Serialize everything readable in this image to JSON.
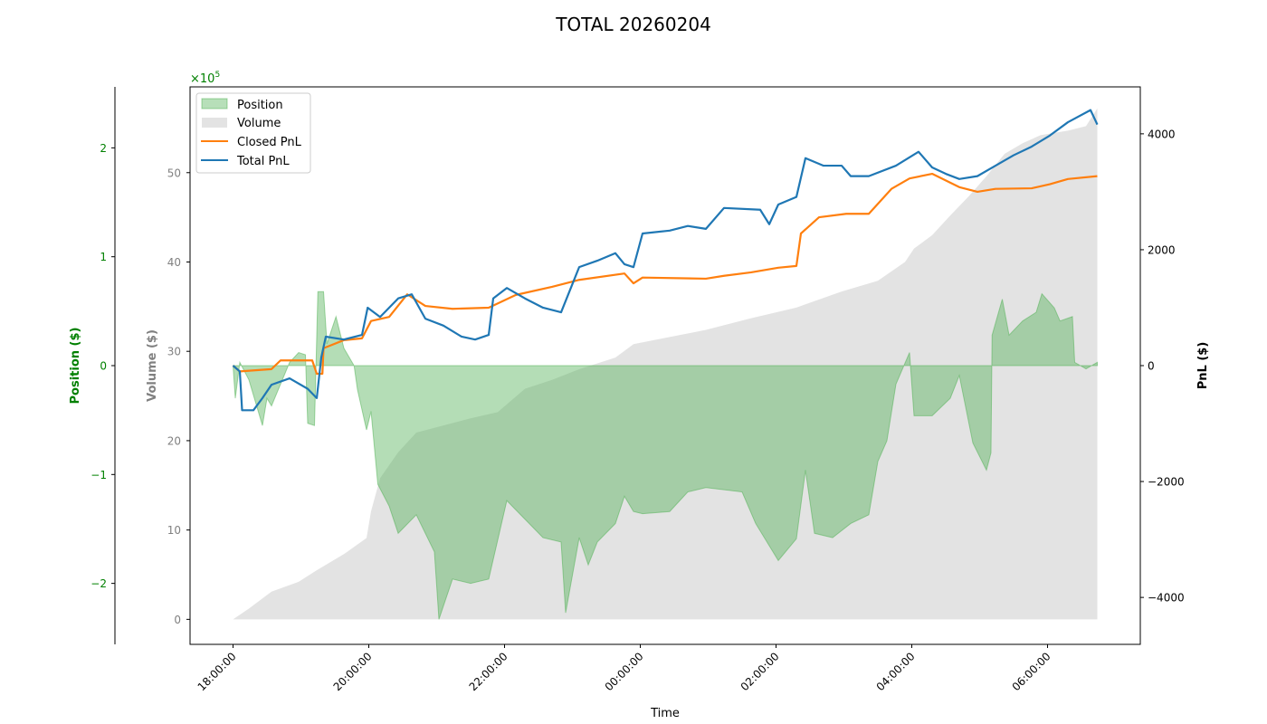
{
  "chart_data": {
    "type": "line",
    "title": "TOTAL 20260204",
    "xlabel": "Time",
    "xlim": [
      "17:22",
      "07:22"
    ],
    "x_ticks": [
      "18:00:00",
      "20:00:00",
      "22:00:00",
      "00:00:00",
      "02:00:00",
      "04:00:00",
      "06:00:00"
    ],
    "grid": false,
    "legend_position": "top-left",
    "axes": {
      "position": {
        "label": "Position ($)",
        "multiplier_label": "×10",
        "multiplier_exp": "5",
        "ylim": [
          -2.56,
          2.56
        ],
        "ticks": [
          -2,
          -1,
          0,
          1,
          2
        ],
        "tick_labels": [
          "−2",
          "−1",
          "0",
          "1",
          "2"
        ],
        "color": "#008000"
      },
      "volume": {
        "label": "Volume ($)",
        "ylim": [
          -2.8,
          59.6
        ],
        "ticks": [
          0,
          10,
          20,
          30,
          40,
          50
        ],
        "tick_labels": [
          "0",
          "10",
          "20",
          "30",
          "40",
          "50"
        ],
        "color": "#808080"
      },
      "pnl": {
        "label": "PnL ($)",
        "ylim": [
          -4810,
          4810
        ],
        "ticks": [
          -4000,
          -2000,
          0,
          2000,
          4000
        ],
        "tick_labels": [
          "−4000",
          "−2000",
          "0",
          "2000",
          "4000"
        ],
        "color": "#000000"
      }
    },
    "series": [
      {
        "name": "Position",
        "kind": "area",
        "axis": "position",
        "color": "#4caf50",
        "points": [
          [
            "18:00",
            0
          ],
          [
            "18:02",
            -0.3
          ],
          [
            "18:06",
            0.03
          ],
          [
            "18:14",
            -0.13
          ],
          [
            "18:26",
            -0.55
          ],
          [
            "18:30",
            -0.3
          ],
          [
            "18:34",
            -0.37
          ],
          [
            "18:50",
            0.03
          ],
          [
            "18:58",
            0.12
          ],
          [
            "19:04",
            0.1
          ],
          [
            "19:06",
            -0.53
          ],
          [
            "19:12",
            -0.55
          ],
          [
            "19:15",
            0.68
          ],
          [
            "19:20",
            0.68
          ],
          [
            "19:23",
            0.2
          ],
          [
            "19:31",
            0.45
          ],
          [
            "19:38",
            0.16
          ],
          [
            "19:47",
            0.0
          ],
          [
            "19:50",
            -0.22
          ],
          [
            "19:58",
            -0.59
          ],
          [
            "20:02",
            -0.42
          ],
          [
            "20:08",
            -1.09
          ],
          [
            "20:18",
            -1.29
          ],
          [
            "20:26",
            -1.54
          ],
          [
            "20:42",
            -1.37
          ],
          [
            "20:58",
            -1.71
          ],
          [
            "21:02",
            -2.33
          ],
          [
            "21:14",
            -1.96
          ],
          [
            "21:30",
            -2.0
          ],
          [
            "21:46",
            -1.96
          ],
          [
            "22:02",
            -1.24
          ],
          [
            "22:18",
            -1.41
          ],
          [
            "22:34",
            -1.58
          ],
          [
            "22:50",
            -1.62
          ],
          [
            "22:54",
            -2.27
          ],
          [
            "23:06",
            -1.58
          ],
          [
            "23:14",
            -1.83
          ],
          [
            "23:22",
            -1.62
          ],
          [
            "23:38",
            -1.45
          ],
          [
            "23:46",
            -1.2
          ],
          [
            "23:54",
            -1.34
          ],
          [
            "00:02",
            -1.36
          ],
          [
            "00:26",
            -1.34
          ],
          [
            "00:42",
            -1.16
          ],
          [
            "00:58",
            -1.12
          ],
          [
            "01:30",
            -1.16
          ],
          [
            "01:42",
            -1.45
          ],
          [
            "02:02",
            -1.79
          ],
          [
            "02:18",
            -1.59
          ],
          [
            "02:26",
            -0.96
          ],
          [
            "02:34",
            -1.54
          ],
          [
            "02:50",
            -1.58
          ],
          [
            "03:06",
            -1.45
          ],
          [
            "03:22",
            -1.37
          ],
          [
            "03:30",
            -0.88
          ],
          [
            "03:38",
            -0.69
          ],
          [
            "03:46",
            -0.17
          ],
          [
            "03:58",
            0.12
          ],
          [
            "04:02",
            -0.46
          ],
          [
            "04:18",
            -0.46
          ],
          [
            "04:34",
            -0.3
          ],
          [
            "04:42",
            -0.09
          ],
          [
            "04:54",
            -0.71
          ],
          [
            "05:06",
            -0.96
          ],
          [
            "05:10",
            -0.8
          ],
          [
            "05:11",
            0.28
          ],
          [
            "05:20",
            0.61
          ],
          [
            "05:26",
            0.28
          ],
          [
            "05:38",
            0.41
          ],
          [
            "05:50",
            0.49
          ],
          [
            "05:55",
            0.66
          ],
          [
            "06:06",
            0.53
          ],
          [
            "06:11",
            0.41
          ],
          [
            "06:22",
            0.45
          ],
          [
            "06:24",
            0.03
          ],
          [
            "06:34",
            -0.03
          ],
          [
            "06:44",
            0.03
          ]
        ]
      },
      {
        "name": "Volume",
        "kind": "area",
        "axis": "volume",
        "color": "#d3d3d3",
        "points": [
          [
            "18:00",
            0
          ],
          [
            "18:14",
            1.2
          ],
          [
            "18:34",
            3.1
          ],
          [
            "18:58",
            4.2
          ],
          [
            "19:14",
            5.5
          ],
          [
            "19:38",
            7.3
          ],
          [
            "19:58",
            9.1
          ],
          [
            "20:02",
            12.1
          ],
          [
            "20:10",
            15.8
          ],
          [
            "20:26",
            18.7
          ],
          [
            "20:42",
            20.9
          ],
          [
            "21:06",
            21.7
          ],
          [
            "21:30",
            22.5
          ],
          [
            "21:54",
            23.2
          ],
          [
            "22:18",
            25.8
          ],
          [
            "22:42",
            26.8
          ],
          [
            "23:06",
            28.0
          ],
          [
            "23:38",
            29.3
          ],
          [
            "23:54",
            30.8
          ],
          [
            "00:26",
            31.6
          ],
          [
            "00:58",
            32.4
          ],
          [
            "01:38",
            33.7
          ],
          [
            "02:18",
            34.9
          ],
          [
            "02:58",
            36.7
          ],
          [
            "03:30",
            37.9
          ],
          [
            "03:54",
            40.0
          ],
          [
            "04:02",
            41.5
          ],
          [
            "04:18",
            43.0
          ],
          [
            "04:34",
            45.2
          ],
          [
            "04:50",
            47.3
          ],
          [
            "05:06",
            49.6
          ],
          [
            "05:22",
            52.1
          ],
          [
            "05:38",
            53.3
          ],
          [
            "05:54",
            54.2
          ],
          [
            "06:18",
            54.7
          ],
          [
            "06:34",
            55.2
          ],
          [
            "06:44",
            57.2
          ]
        ]
      },
      {
        "name": "Closed PnL",
        "kind": "line",
        "axis": "pnl",
        "color": "#ff7f0e",
        "points": [
          [
            "18:00",
            0
          ],
          [
            "18:06",
            -100
          ],
          [
            "18:34",
            -60
          ],
          [
            "18:42",
            90
          ],
          [
            "19:10",
            90
          ],
          [
            "19:14",
            -140
          ],
          [
            "19:19",
            -140
          ],
          [
            "19:20",
            300
          ],
          [
            "19:38",
            440
          ],
          [
            "19:54",
            470
          ],
          [
            "20:02",
            770
          ],
          [
            "20:18",
            840
          ],
          [
            "20:34",
            1230
          ],
          [
            "20:50",
            1030
          ],
          [
            "21:14",
            980
          ],
          [
            "21:46",
            1000
          ],
          [
            "22:10",
            1220
          ],
          [
            "22:42",
            1360
          ],
          [
            "23:06",
            1480
          ],
          [
            "23:46",
            1590
          ],
          [
            "23:54",
            1420
          ],
          [
            "00:02",
            1520
          ],
          [
            "00:58",
            1500
          ],
          [
            "01:14",
            1550
          ],
          [
            "01:38",
            1610
          ],
          [
            "02:02",
            1690
          ],
          [
            "02:18",
            1720
          ],
          [
            "02:22",
            2280
          ],
          [
            "02:38",
            2560
          ],
          [
            "03:02",
            2620
          ],
          [
            "03:22",
            2620
          ],
          [
            "03:42",
            3050
          ],
          [
            "03:58",
            3230
          ],
          [
            "04:18",
            3310
          ],
          [
            "04:42",
            3080
          ],
          [
            "04:58",
            3000
          ],
          [
            "05:14",
            3050
          ],
          [
            "05:46",
            3060
          ],
          [
            "06:02",
            3130
          ],
          [
            "06:18",
            3220
          ],
          [
            "06:44",
            3270
          ]
        ]
      },
      {
        "name": "Total PnL",
        "kind": "line",
        "axis": "pnl",
        "color": "#1f77b4",
        "points": [
          [
            "18:00",
            0
          ],
          [
            "18:06",
            -100
          ],
          [
            "18:08",
            -770
          ],
          [
            "18:18",
            -770
          ],
          [
            "18:26",
            -560
          ],
          [
            "18:34",
            -330
          ],
          [
            "18:50",
            -220
          ],
          [
            "19:06",
            -400
          ],
          [
            "19:14",
            -560
          ],
          [
            "19:18",
            140
          ],
          [
            "19:22",
            500
          ],
          [
            "19:38",
            450
          ],
          [
            "19:54",
            530
          ],
          [
            "19:59",
            1000
          ],
          [
            "20:10",
            840
          ],
          [
            "20:26",
            1160
          ],
          [
            "20:38",
            1230
          ],
          [
            "20:50",
            810
          ],
          [
            "21:06",
            690
          ],
          [
            "21:22",
            500
          ],
          [
            "21:34",
            450
          ],
          [
            "21:46",
            530
          ],
          [
            "21:50",
            1160
          ],
          [
            "22:02",
            1340
          ],
          [
            "22:18",
            1160
          ],
          [
            "22:34",
            1000
          ],
          [
            "22:50",
            920
          ],
          [
            "23:06",
            1700
          ],
          [
            "23:22",
            1810
          ],
          [
            "23:38",
            1940
          ],
          [
            "23:46",
            1750
          ],
          [
            "23:54",
            1700
          ],
          [
            "00:02",
            2280
          ],
          [
            "00:26",
            2330
          ],
          [
            "00:42",
            2410
          ],
          [
            "00:58",
            2360
          ],
          [
            "01:14",
            2720
          ],
          [
            "01:46",
            2690
          ],
          [
            "01:54",
            2440
          ],
          [
            "02:02",
            2780
          ],
          [
            "02:18",
            2910
          ],
          [
            "02:26",
            3580
          ],
          [
            "02:42",
            3450
          ],
          [
            "02:58",
            3450
          ],
          [
            "03:06",
            3270
          ],
          [
            "03:22",
            3270
          ],
          [
            "03:46",
            3450
          ],
          [
            "04:06",
            3690
          ],
          [
            "04:18",
            3420
          ],
          [
            "04:30",
            3310
          ],
          [
            "04:42",
            3220
          ],
          [
            "04:58",
            3270
          ],
          [
            "05:14",
            3450
          ],
          [
            "05:30",
            3630
          ],
          [
            "05:46",
            3780
          ],
          [
            "06:02",
            3970
          ],
          [
            "06:18",
            4200
          ],
          [
            "06:38",
            4410
          ],
          [
            "06:44",
            4160
          ]
        ]
      }
    ]
  }
}
